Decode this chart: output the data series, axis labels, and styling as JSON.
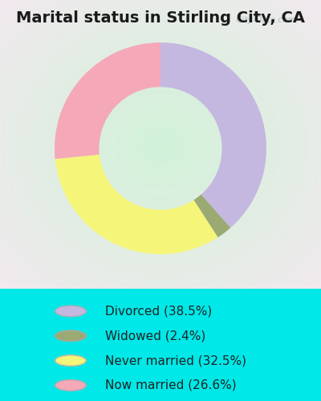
{
  "title": "Marital status in Stirling City, CA",
  "categories": [
    "Divorced",
    "Widowed",
    "Never married",
    "Now married"
  ],
  "values": [
    38.5,
    2.4,
    32.5,
    26.6
  ],
  "colors": [
    "#c4b8e0",
    "#9aaa72",
    "#f5f57a",
    "#f4a8b8"
  ],
  "legend_labels": [
    "Divorced (38.5%)",
    "Widowed (2.4%)",
    "Never married (32.5%)",
    "Now married (26.6%)"
  ],
  "background_outer": "#00e8e8",
  "background_chart": "#d8ede0",
  "donut_width": 0.42,
  "watermark": "City-Data.com",
  "title_fontsize": 14,
  "legend_fontsize": 11
}
